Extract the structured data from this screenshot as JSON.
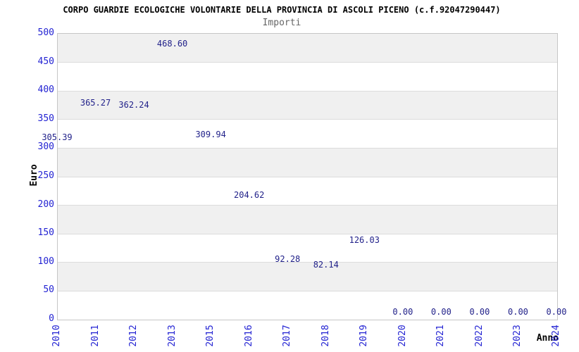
{
  "chart": {
    "title": "CORPO GUARDIE ECOLOGICHE VOLONTARIE DELLA PROVINCIA DI ASCOLI PICENO (c.f.92047290447)",
    "subtitle": "Importi",
    "ylabel": "Euro",
    "xlabel": "Anno"
  },
  "chart_data": {
    "type": "line",
    "title": "CORPO GUARDIE ECOLOGICHE VOLONTARIE DELLA PROVINCIA DI ASCOLI PICENO (c.f.92047290447)",
    "subtitle": "Importi",
    "xlabel": "Anno",
    "ylabel": "Euro",
    "categories": [
      "2010",
      "2011",
      "2012",
      "2013",
      "2015",
      "2016",
      "2017",
      "2018",
      "2019",
      "2020",
      "2021",
      "2022",
      "2023",
      "2024"
    ],
    "values": [
      305.39,
      365.27,
      362.24,
      468.6,
      309.94,
      204.62,
      92.28,
      82.14,
      126.03,
      0,
      0,
      0,
      0,
      0
    ],
    "value_labels": [
      "305.39",
      "365.27",
      "362.24",
      "468.60",
      "309.94",
      "204.62",
      "92.28",
      "82.14",
      "126.03",
      "0.00",
      "0.00",
      "0.00",
      "0.00",
      "0.00"
    ],
    "ylim": [
      0,
      500
    ],
    "y_ticks": [
      0,
      50,
      100,
      150,
      200,
      250,
      300,
      350,
      400,
      450,
      500
    ],
    "grid": "horizontal-alternating-bands",
    "legend": "none",
    "markers": "none",
    "colors": {
      "line": "#85b8ef",
      "tick_label": "#2323d3",
      "data_label": "#22228a",
      "band_gray": "#f0f0f0",
      "band_white": "#ffffff",
      "plot_border": "#c6c6c6",
      "gridline": "#dcdcdc",
      "title": "#000000",
      "subtitle": "#666666",
      "axis_title": "#000000"
    }
  }
}
